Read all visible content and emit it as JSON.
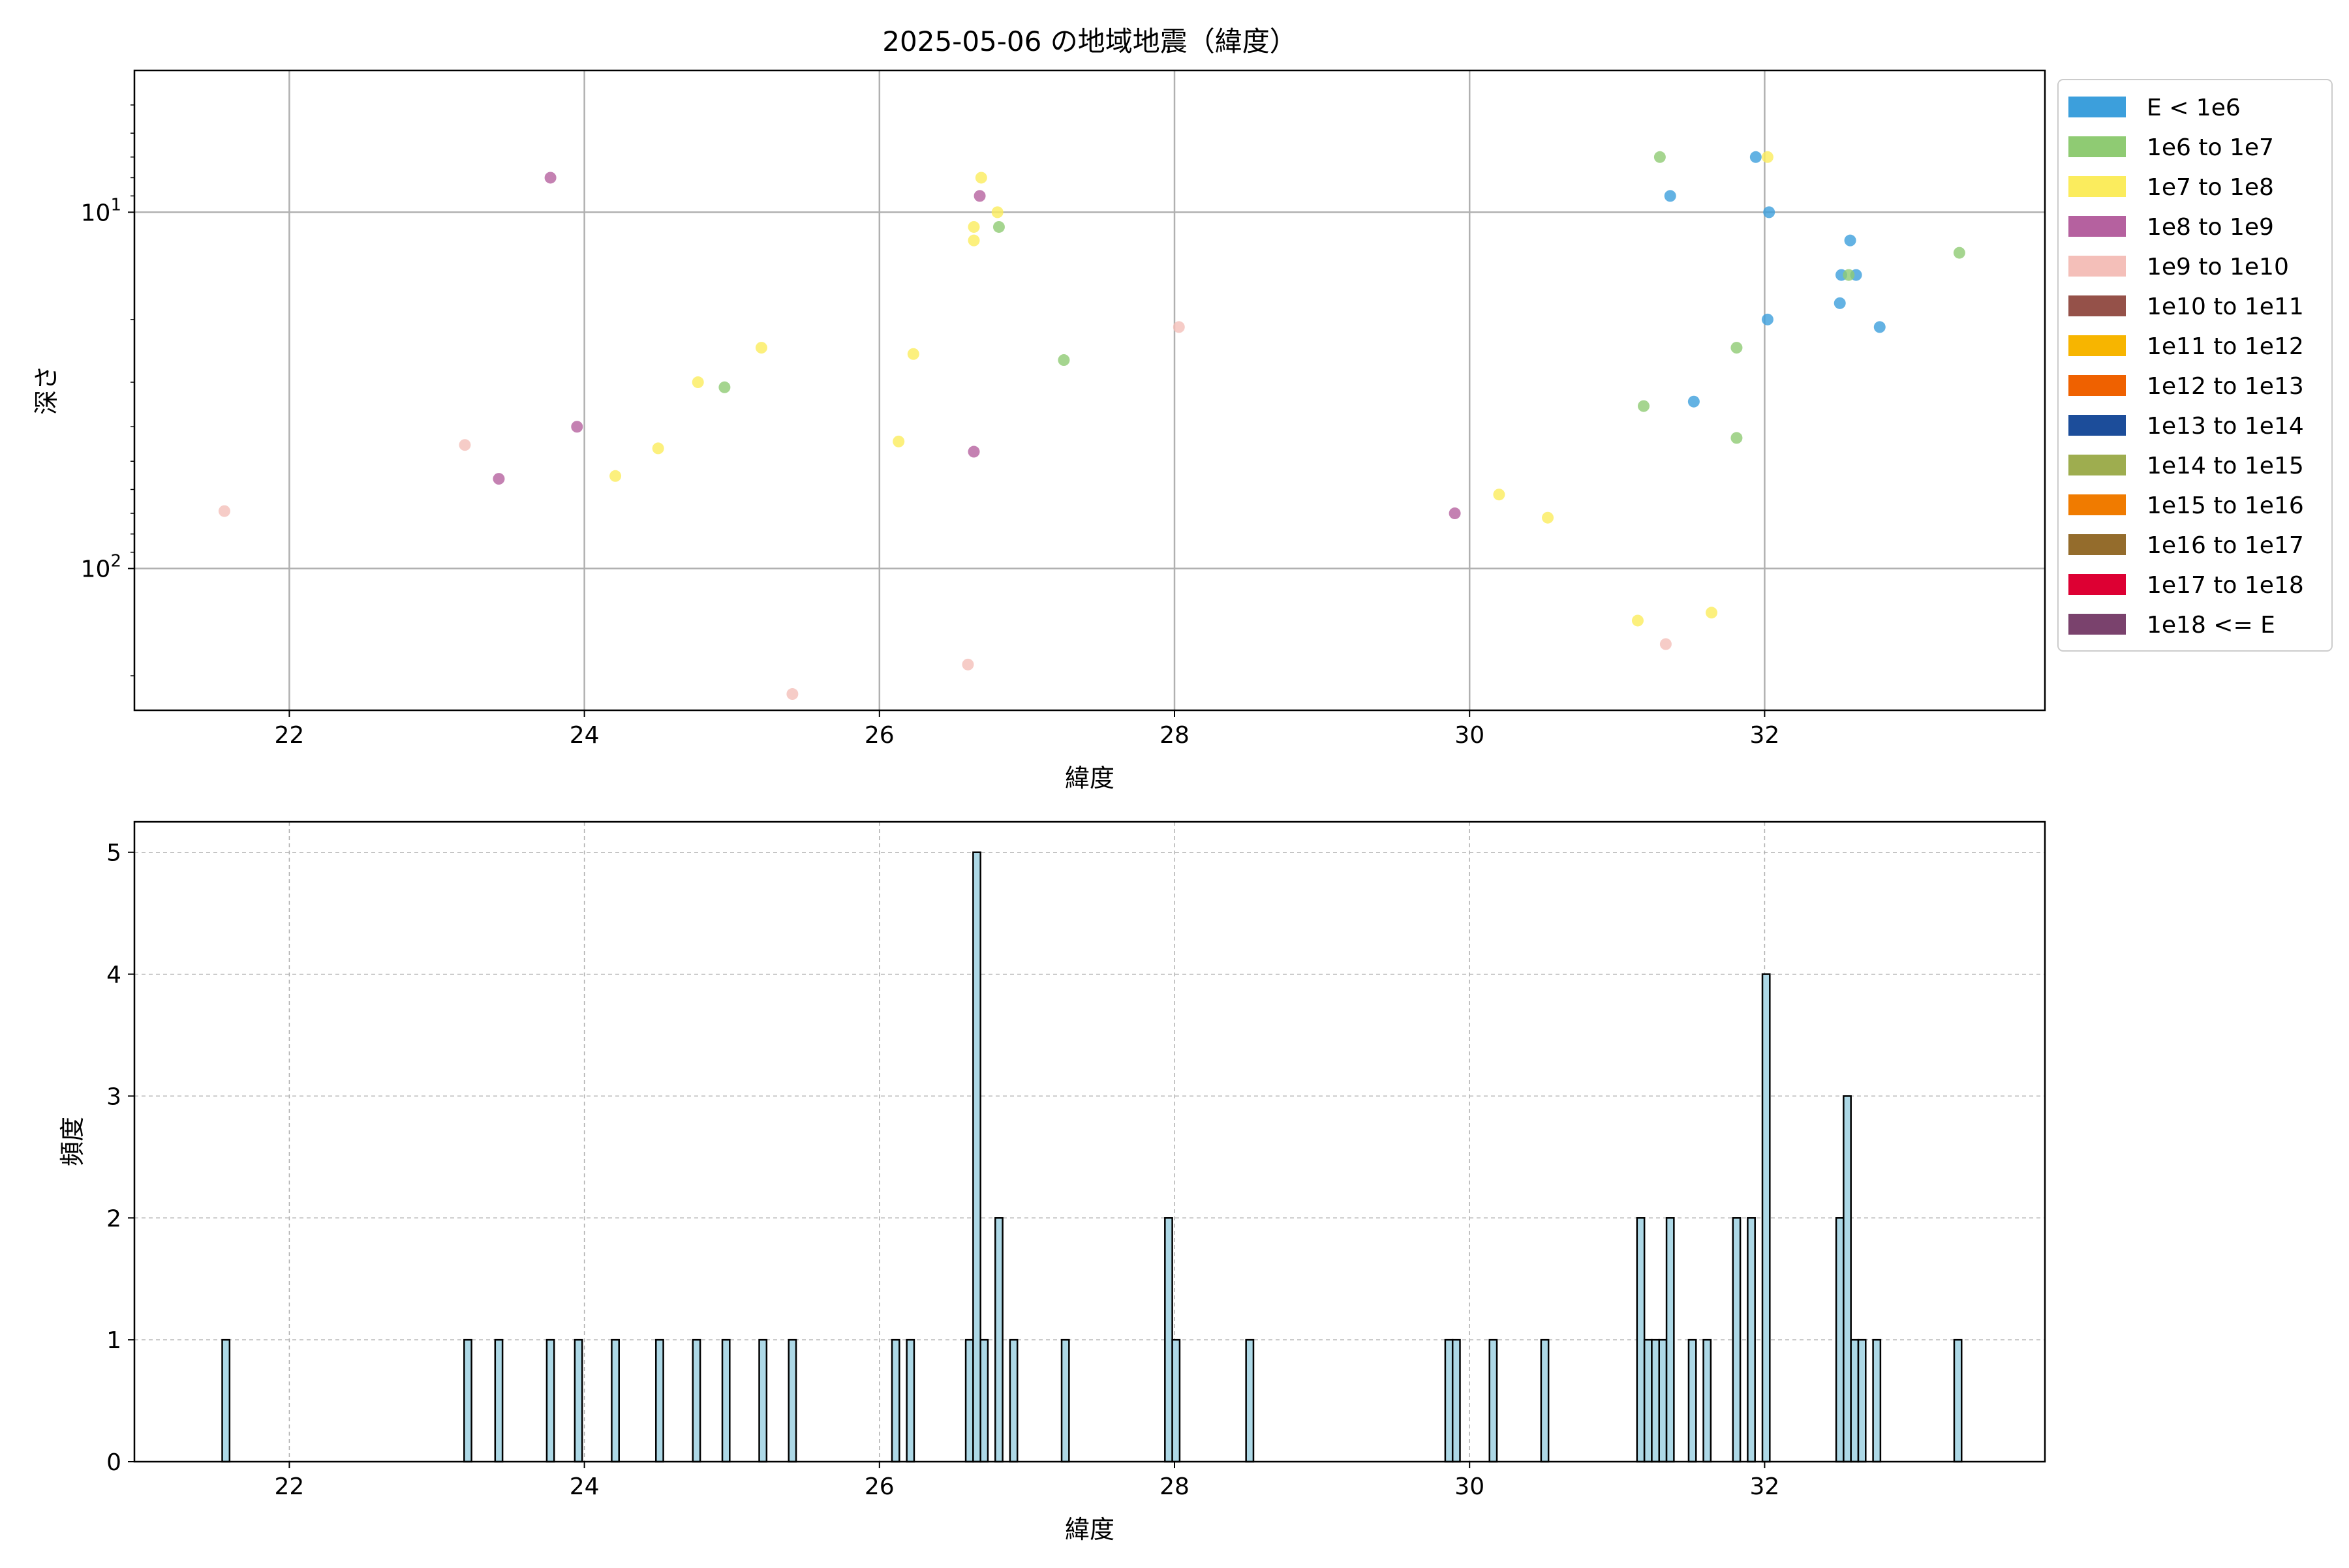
{
  "chart_data": [
    {
      "type": "scatter",
      "title": "2025-05-06 の地域地震（緯度）",
      "xlabel": "緯度",
      "ylabel": "深さ",
      "xlim": [
        20.95,
        33.9
      ],
      "ylim": [
        250,
        4
      ],
      "y_scale": "log",
      "y_inverted": true,
      "grid": true,
      "xticks": [
        22,
        24,
        26,
        28,
        30,
        32
      ],
      "yticks": [
        {
          "value": 10,
          "label": "10^1"
        },
        {
          "value": 100,
          "label": "10^2"
        }
      ],
      "legend_position": "outside-right",
      "legend": [
        {
          "label": "E < 1e6",
          "color": "#3c9fdc"
        },
        {
          "label": "1e6 to 1e7",
          "color": "#8fcb73"
        },
        {
          "label": "1e7 to 1e8",
          "color": "#fbec5d"
        },
        {
          "label": "1e8 to 1e9",
          "color": "#b5619f"
        },
        {
          "label": "1e9 to 1e10",
          "color": "#f4bfb9"
        },
        {
          "label": "1e10 to 1e11",
          "color": "#955149"
        },
        {
          "label": "1e11 to 1e12",
          "color": "#f7b500"
        },
        {
          "label": "1e12 to 1e13",
          "color": "#ef6100"
        },
        {
          "label": "1e13 to 1e14",
          "color": "#1c4d9a"
        },
        {
          "label": "1e14 to 1e15",
          "color": "#9ead4f"
        },
        {
          "label": "1e15 to 1e16",
          "color": "#f07b00"
        },
        {
          "label": "1e16 to 1e17",
          "color": "#946c2c"
        },
        {
          "label": "1e17 to 1e18",
          "color": "#dd0033"
        },
        {
          "label": "1e18 <= E",
          "color": "#7a426d"
        }
      ],
      "series": [
        {
          "name": "E < 1e6",
          "points": [
            [
              31.94,
              7
            ],
            [
              31.36,
              9
            ],
            [
              32.03,
              10
            ],
            [
              32.58,
              12
            ],
            [
              32.52,
              15
            ],
            [
              32.62,
              15
            ],
            [
              32.51,
              18
            ],
            [
              32.02,
              20
            ],
            [
              32.78,
              21
            ],
            [
              31.52,
              34
            ]
          ]
        },
        {
          "name": "1e6 to 1e7",
          "points": [
            [
              31.29,
              7
            ],
            [
              26.81,
              11
            ],
            [
              33.32,
              13
            ],
            [
              32.57,
              15
            ],
            [
              31.81,
              24
            ],
            [
              27.25,
              26
            ],
            [
              24.95,
              31
            ],
            [
              31.18,
              35
            ],
            [
              31.81,
              43
            ]
          ]
        },
        {
          "name": "1e7 to 1e8",
          "points": [
            [
              32.02,
              7
            ],
            [
              26.69,
              8
            ],
            [
              26.8,
              10
            ],
            [
              26.64,
              11
            ],
            [
              26.64,
              12
            ],
            [
              25.2,
              24
            ],
            [
              26.23,
              25
            ],
            [
              24.77,
              30
            ],
            [
              26.13,
              44
            ],
            [
              24.5,
              46
            ],
            [
              24.21,
              55
            ],
            [
              30.2,
              62
            ],
            [
              30.53,
              72
            ],
            [
              31.14,
              140
            ],
            [
              31.64,
              133
            ]
          ]
        },
        {
          "name": "1e8 to 1e9",
          "points": [
            [
              23.77,
              8
            ],
            [
              26.68,
              9
            ],
            [
              23.95,
              40
            ],
            [
              26.64,
              47
            ],
            [
              23.42,
              56
            ],
            [
              29.9,
              70
            ]
          ]
        },
        {
          "name": "1e9 to 1e10",
          "points": [
            [
              28.03,
              21
            ],
            [
              23.19,
              45
            ],
            [
              21.56,
              69
            ],
            [
              31.33,
              163
            ],
            [
              26.6,
              186
            ],
            [
              25.41,
              225
            ]
          ]
        }
      ]
    },
    {
      "type": "bar",
      "xlabel": "緯度",
      "ylabel": "頻度",
      "xlim": [
        20.95,
        33.9
      ],
      "ylim": [
        0,
        5.25
      ],
      "bar_width": 0.05,
      "grid": true,
      "grid_style": "dashed",
      "xticks": [
        22,
        24,
        26,
        28,
        30,
        32
      ],
      "yticks": [
        0,
        1,
        2,
        3,
        4,
        5
      ],
      "color": "#add8e6",
      "edgecolor": "#000000",
      "x": [
        21.57,
        23.21,
        23.42,
        23.77,
        23.96,
        24.21,
        24.51,
        24.76,
        24.96,
        25.21,
        25.41,
        26.11,
        26.21,
        26.61,
        26.66,
        26.71,
        26.81,
        26.91,
        27.26,
        27.96,
        28.01,
        28.51,
        29.86,
        29.91,
        30.16,
        30.51,
        31.16,
        31.21,
        31.26,
        31.31,
        31.36,
        31.51,
        31.61,
        31.81,
        31.91,
        32.01,
        32.51,
        32.56,
        32.61,
        32.66,
        32.76,
        33.31
      ],
      "values": [
        1,
        1,
        1,
        1,
        1,
        1,
        1,
        1,
        1,
        1,
        1,
        1,
        1,
        1,
        5,
        1,
        2,
        1,
        1,
        2,
        1,
        1,
        1,
        1,
        1,
        1,
        2,
        1,
        1,
        1,
        2,
        1,
        1,
        2,
        2,
        4,
        2,
        3,
        1,
        1,
        1,
        1
      ]
    }
  ]
}
